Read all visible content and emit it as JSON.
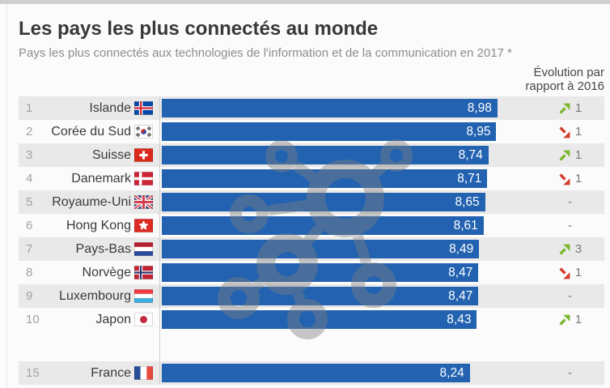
{
  "header": {
    "title": "Les pays les plus connectés au monde",
    "subtitle": "Pays les plus connectés aux technologies de l'information et de la communication en 2017 *",
    "evolution_line1": "Évolution par",
    "evolution_line2": "rapport à 2016"
  },
  "colors": {
    "bar": "#2262b0",
    "stripe": "#e9e9e9",
    "up": "#7cb62e",
    "down": "#d43c2b",
    "rank": "#a2a2a2",
    "country": "#3a3a3a",
    "evo_text": "#7a7a7a"
  },
  "chart_data": {
    "type": "bar",
    "title": "Les pays les plus connectés au monde",
    "subtitle": "Pays les plus connectés aux technologies de l'information et de la communication en 2017 *",
    "evolution_header": "Évolution par rapport à 2016",
    "xlim": [
      0,
      10
    ],
    "orientation": "horizontal",
    "value_format": "comma-decimal",
    "rows": [
      {
        "rank": "1",
        "country": "Islande",
        "flag": "is",
        "value_label": "8,98",
        "value": 8.98,
        "evolution_dir": "up",
        "evolution_value": "1"
      },
      {
        "rank": "2",
        "country": "Corée du Sud",
        "flag": "kr",
        "value_label": "8,95",
        "value": 8.95,
        "evolution_dir": "down",
        "evolution_value": "1"
      },
      {
        "rank": "3",
        "country": "Suisse",
        "flag": "ch",
        "value_label": "8,74",
        "value": 8.74,
        "evolution_dir": "up",
        "evolution_value": "1"
      },
      {
        "rank": "4",
        "country": "Danemark",
        "flag": "dk",
        "value_label": "8,71",
        "value": 8.71,
        "evolution_dir": "down",
        "evolution_value": "1"
      },
      {
        "rank": "5",
        "country": "Royaume-Uni",
        "flag": "gb",
        "value_label": "8,65",
        "value": 8.65,
        "evolution_dir": "none",
        "evolution_value": "-"
      },
      {
        "rank": "6",
        "country": "Hong Kong",
        "flag": "hk",
        "value_label": "8,61",
        "value": 8.61,
        "evolution_dir": "none",
        "evolution_value": "-"
      },
      {
        "rank": "7",
        "country": "Pays-Bas",
        "flag": "nl",
        "value_label": "8,49",
        "value": 8.49,
        "evolution_dir": "up",
        "evolution_value": "3"
      },
      {
        "rank": "8",
        "country": "Norvège",
        "flag": "no",
        "value_label": "8,47",
        "value": 8.47,
        "evolution_dir": "down",
        "evolution_value": "1"
      },
      {
        "rank": "9",
        "country": "Luxembourg",
        "flag": "lu",
        "value_label": "8,47",
        "value": 8.47,
        "evolution_dir": "none",
        "evolution_value": "-"
      },
      {
        "rank": "10",
        "country": "Japon",
        "flag": "jp",
        "value_label": "8,43",
        "value": 8.43,
        "evolution_dir": "up",
        "evolution_value": "1"
      },
      {
        "rank": "15",
        "country": "France",
        "flag": "fr",
        "value_label": "8,24",
        "value": 8.24,
        "evolution_dir": "none",
        "evolution_value": "-",
        "gap_before": true
      }
    ]
  }
}
